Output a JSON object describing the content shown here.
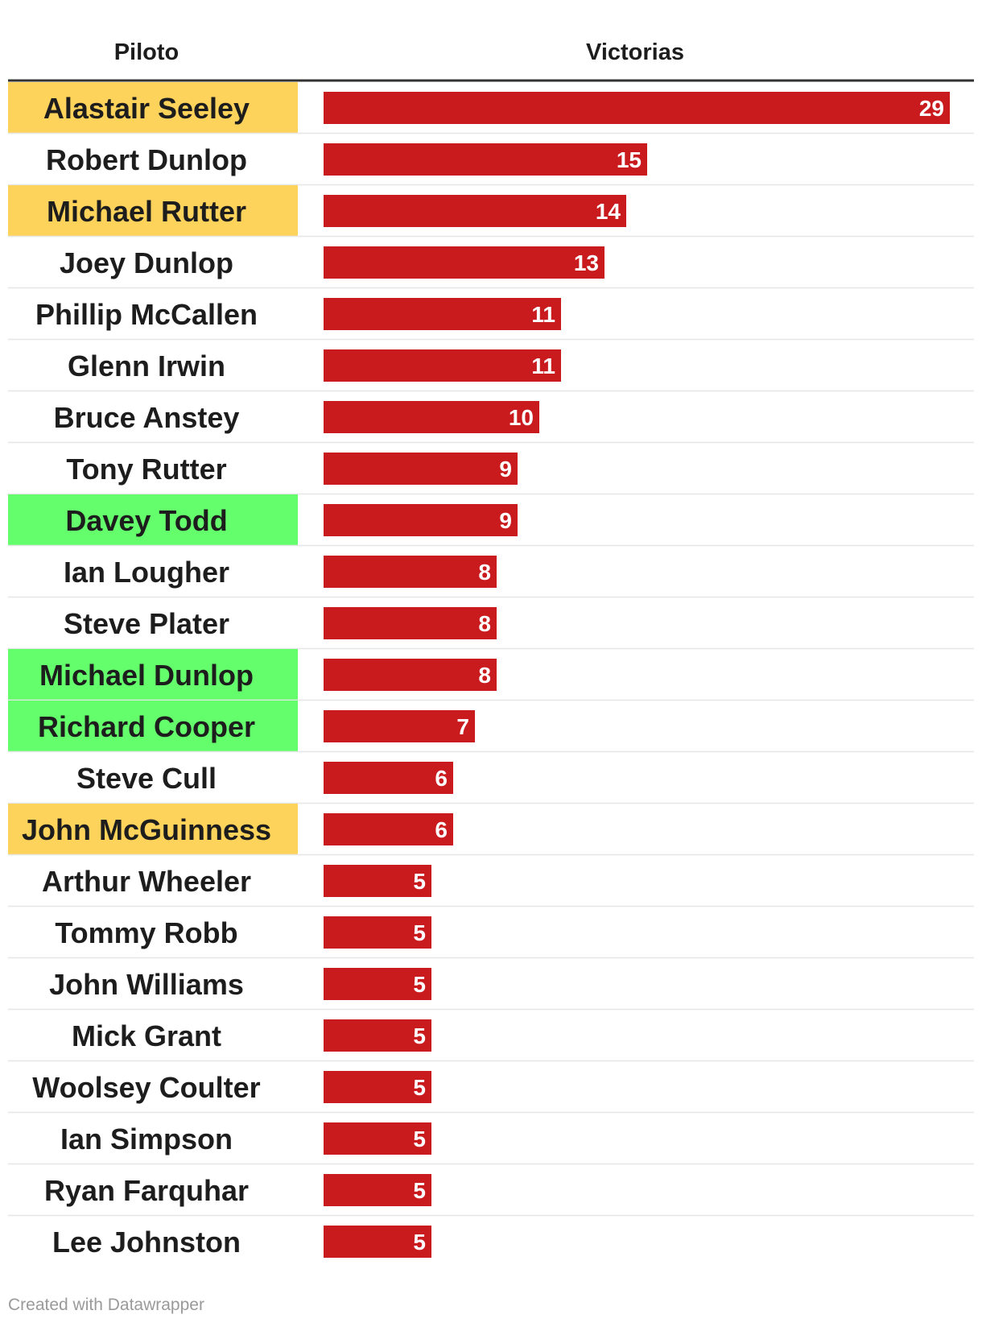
{
  "table": {
    "col_name_header": "Piloto",
    "col_value_header": "Victorias"
  },
  "colors": {
    "bar": "#c91a1e",
    "highlight_yellow": "#fed35b",
    "highlight_green": "#64fe6c",
    "divider": "#e6e6e6",
    "header_rule": "#333333"
  },
  "chart_data": {
    "type": "bar",
    "orientation": "horizontal",
    "categories": [
      "Alastair Seeley",
      "Robert Dunlop",
      "Michael Rutter",
      "Joey Dunlop",
      "Phillip McCallen",
      "Glenn Irwin",
      "Bruce Anstey",
      "Tony Rutter",
      "Davey Todd",
      "Ian Lougher",
      "Steve Plater",
      "Michael Dunlop",
      "Richard Cooper",
      "Steve Cull",
      "John McGuinness",
      "Arthur Wheeler",
      "Tommy Robb",
      "John Williams",
      "Mick Grant",
      "Woolsey Coulter",
      "Ian Simpson",
      "Ryan Farquhar",
      "Lee Johnston"
    ],
    "values": [
      29,
      15,
      14,
      13,
      11,
      11,
      10,
      9,
      9,
      8,
      8,
      8,
      7,
      6,
      6,
      5,
      5,
      5,
      5,
      5,
      5,
      5,
      5
    ],
    "highlights": [
      "yellow",
      "none",
      "yellow",
      "none",
      "none",
      "none",
      "none",
      "none",
      "green",
      "none",
      "none",
      "green",
      "green",
      "none",
      "yellow",
      "none",
      "none",
      "none",
      "none",
      "none",
      "none",
      "none",
      "none"
    ],
    "xlim": [
      0,
      29
    ],
    "grid": false,
    "title": "",
    "xlabel": "",
    "ylabel": ""
  },
  "footer": "Created with Datawrapper"
}
